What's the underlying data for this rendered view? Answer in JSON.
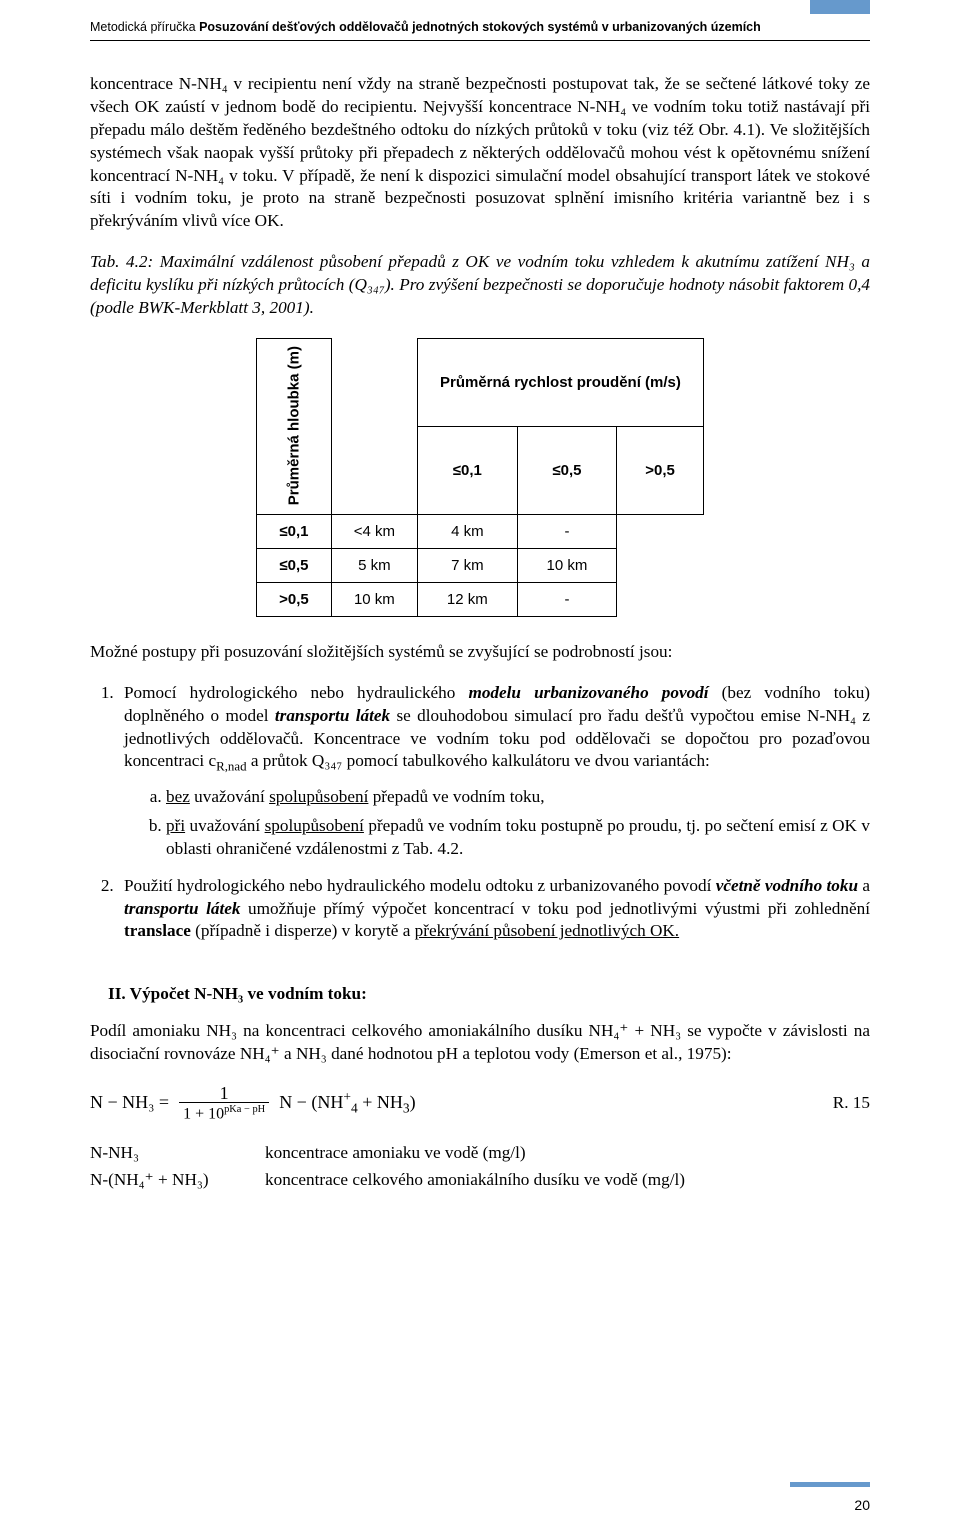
{
  "header": {
    "text_prefix": "Metodická příručka ",
    "text_bold": "Posuzování dešťových oddělovačů jednotných stokových systémů v urbanizovaných územích",
    "marker_color": "#6699cc"
  },
  "para1": "koncentrace N-NH₄ v recipientu není vždy na straně bezpečnosti postupovat tak, že se sečtené látkové toky ze všech OK zaústí v jednom bodě do recipientu. Nejvyšší koncentrace N-NH₄ ve vodním toku totiž nastávají při přepadu málo deštěm ředěného bezdeštného odtoku do nízkých průtoků v toku (viz též Obr. 4.1). Ve složitějších systémech však naopak vyšší průtoky při přepadech z některých oddělovačů mohou vést k opětovnému snížení koncentrací N-NH₄ v toku. V případě, že není k dispozici simulační model obsahující transport látek ve stokové síti i vodním toku, je proto na straně bezpečnosti posuzovat splnění imisního kritéria variantně bez i s překrýváním vlivů více OK.",
  "caption": {
    "prefix": "Tab. 4.2",
    "body": ": Maximální vzdálenost působení přepadů z OK ve vodním toku vzhledem k akutnímu zatížení NH₃ a deficitu kyslíku při nízkých průtocích (Q₃₄₇). Pro zvýšení bezpečnosti se doporučuje hodnoty násobit faktorem 0,4 (podle BWK-Merkblatt 3, 2001)."
  },
  "table": {
    "type": "table",
    "font_family": "Arial",
    "border_color": "#000000",
    "header_top": "Průměrná rychlost proudění (m/s)",
    "row_header_title": "Průměrná hloubka (m)",
    "col_headers": [
      "≤0,1",
      "≤0,5",
      ">0,5"
    ],
    "row_headers": [
      "≤0,1",
      "≤0,5",
      ">0,5"
    ],
    "rows": [
      [
        "<4 km",
        "4 km",
        "-"
      ],
      [
        "5 km",
        "7 km",
        "10 km"
      ],
      [
        "10 km",
        "12 km",
        "-"
      ]
    ]
  },
  "after_table": "Možné postupy při posuzování složitějších systémů se zvyšující se podrobností jsou:",
  "list1": {
    "item1_pre": "Pomocí hydrologického nebo hydraulického ",
    "item1_b1": "modelu urbanizovaného povodí",
    "item1_mid1": " (bez vodního toku) doplněného o model ",
    "item1_b2": "transportu látek",
    "item1_rest": " se dlouhodobou simulací pro řadu dešťů vypočtou emise N-NH₄ z jednotlivých oddělovačů. Koncentrace ve vodním toku pod oddělovači se dopočtou pro pozaďovou koncentraci c",
    "item1_sub": "R,nad",
    "item1_rest2": " a průtok Q₃₄₇ pomocí tabulkového kalkulátoru ve dvou variantách:",
    "a": {
      "u1": "bez",
      "t1": " uvažování ",
      "u2": "spolupůsobení",
      "t2": " přepadů ve vodním toku,"
    },
    "b": {
      "u1": "při",
      "t1": " uvažování ",
      "u2": "spolupůsobení",
      "t2": " přepadů ve vodním toku postupně po proudu, tj. po sečtení emisí z OK v oblasti ohraničené vzdálenostmi z Tab. 4.2."
    },
    "item2_pre": "Použití hydrologického nebo hydraulického modelu odtoku z urbanizovaného povodí ",
    "item2_b1": "včetně vodního toku",
    "item2_mid": " a ",
    "item2_b2": "transportu látek",
    "item2_rest": " umožňuje přímý výpočet koncentrací v toku pod jednotlivými výustmi při zohlednění ",
    "item2_b3": "translace",
    "item2_rest2": " (případně i disperze) v korytě a ",
    "item2_u": "překrývání působení jednotlivých OK."
  },
  "section2": {
    "title": "II. Výpočet N-NH₃ ve vodním toku:",
    "para": "Podíl amoniaku NH₃ na koncentraci celkového amoniakálního dusíku NH₄⁺ + NH₃ se vypočte v závislosti na disociační rovnováze NH₄⁺ a NH₃ dané hodnotou pH a teplotou vody (Emerson et al., 1975):"
  },
  "formula": {
    "lhs": "N − NH₃ =",
    "num": "1",
    "den": "1 + 10",
    "den_exp": "pKa − pH",
    "rhs_pre": "N − (NH",
    "rhs_sup": "+",
    "rhs_sub": "4",
    "rhs_mid": " + NH",
    "rhs_sub2": "3",
    "rhs_close": ")",
    "ref": "R. 15"
  },
  "defs": {
    "k1": "N-NH₃",
    "v1": "koncentrace amoniaku ve vodě (mg/l)",
    "k2": "N-(NH₄⁺ + NH₃)",
    "v2": "koncentrace celkového amoniakálního dusíku ve vodě (mg/l)"
  },
  "page_number": "20"
}
